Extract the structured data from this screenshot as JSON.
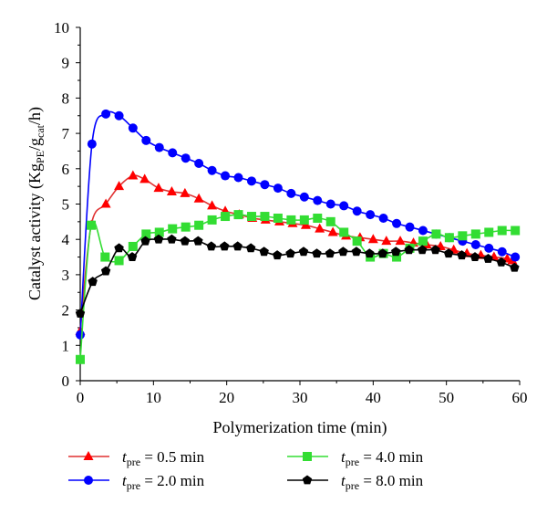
{
  "chart_data": {
    "type": "line",
    "xlabel": "Polymerization time (min)",
    "ylabel": "Catalyst activity (Kg",
    "ylabel_sub1": "PE",
    "ylabel_mid": "/g",
    "ylabel_sub2": "cat",
    "ylabel_end": "/h)",
    "xlim": [
      0,
      60
    ],
    "ylim": [
      0,
      10
    ],
    "x_ticks": [
      "0",
      "10",
      "20",
      "30",
      "40",
      "50",
      "60"
    ],
    "y_ticks": [
      "0",
      "1",
      "2",
      "3",
      "4",
      "5",
      "6",
      "7",
      "8",
      "9",
      "10"
    ],
    "grid": false,
    "legend_position": "bottom",
    "series": [
      {
        "name": "t_pre = 0.5 min",
        "legend_var": "t",
        "legend_sub": "pre",
        "legend_value": " = 0.5 min",
        "color": "#ff0000",
        "line_color": "#e03030",
        "marker": "triangle",
        "x": [
          0,
          1.5,
          3.5,
          5.3,
          7.2,
          8.8,
          10.7,
          12.5,
          14.3,
          16.2,
          18,
          19.8,
          21.7,
          23.5,
          25.3,
          27.2,
          29,
          30.8,
          32.7,
          34.5,
          36.3,
          38.2,
          40,
          41.8,
          43.7,
          45.5,
          47.3,
          49.2,
          51,
          52.8,
          54.7,
          56.5,
          58.3,
          59
        ],
        "values": [
          1.4,
          4.4,
          5.0,
          5.5,
          5.8,
          5.7,
          5.45,
          5.35,
          5.3,
          5.15,
          4.95,
          4.8,
          4.7,
          4.6,
          4.55,
          4.5,
          4.45,
          4.4,
          4.3,
          4.2,
          4.1,
          4.05,
          4.0,
          3.95,
          3.95,
          3.9,
          3.85,
          3.8,
          3.7,
          3.6,
          3.55,
          3.5,
          3.45,
          3.4
        ]
      },
      {
        "name": "t_pre = 2.0 min",
        "legend_var": "t",
        "legend_sub": "pre",
        "legend_value": " = 2.0 min",
        "color": "#0000ff",
        "line_color": "#0000ff",
        "marker": "circle",
        "x": [
          0,
          1.6,
          3.5,
          5.3,
          7.2,
          9,
          10.8,
          12.6,
          14.4,
          16.2,
          18,
          19.8,
          21.6,
          23.4,
          25.2,
          27,
          28.8,
          30.6,
          32.4,
          34.2,
          36,
          37.8,
          39.6,
          41.4,
          43.2,
          45,
          46.8,
          48.6,
          50.4,
          52.2,
          54,
          55.8,
          57.6,
          59.4
        ],
        "values": [
          1.3,
          6.7,
          7.55,
          7.5,
          7.15,
          6.8,
          6.6,
          6.45,
          6.3,
          6.15,
          5.95,
          5.8,
          5.75,
          5.65,
          5.55,
          5.45,
          5.3,
          5.2,
          5.1,
          5.0,
          4.95,
          4.8,
          4.7,
          4.6,
          4.45,
          4.35,
          4.25,
          4.15,
          4.05,
          3.95,
          3.85,
          3.75,
          3.65,
          3.5
        ]
      },
      {
        "name": "t_pre = 4.0 min",
        "legend_var": "t",
        "legend_sub": "pre",
        "legend_value": " = 4.0 min",
        "color": "#33dd33",
        "line_color": "#33dd33",
        "marker": "square",
        "x": [
          0,
          1.5,
          3.4,
          5.3,
          7.2,
          9,
          10.8,
          12.6,
          14.4,
          16.2,
          18,
          19.8,
          21.6,
          23.4,
          25.2,
          27,
          28.8,
          30.6,
          32.4,
          34.2,
          36,
          37.8,
          39.6,
          41.4,
          43.2,
          45,
          46.8,
          48.6,
          50.4,
          52.2,
          54,
          55.8,
          57.6,
          59.4
        ],
        "values": [
          0.6,
          4.4,
          3.5,
          3.4,
          3.8,
          4.15,
          4.2,
          4.3,
          4.35,
          4.4,
          4.55,
          4.65,
          4.7,
          4.65,
          4.65,
          4.6,
          4.55,
          4.55,
          4.6,
          4.5,
          4.2,
          3.95,
          3.5,
          3.6,
          3.5,
          3.75,
          3.95,
          4.15,
          4.05,
          4.1,
          4.15,
          4.2,
          4.25,
          4.25
        ]
      },
      {
        "name": "t_pre = 8.0 min",
        "legend_var": "t",
        "legend_sub": "pre",
        "legend_value": " = 8.0 min",
        "color": "#000000",
        "line_color": "#000000",
        "marker": "pentagon",
        "x": [
          0,
          1.7,
          3.5,
          5.3,
          7.1,
          8.9,
          10.7,
          12.5,
          14.3,
          16.1,
          17.9,
          19.7,
          21.5,
          23.3,
          25.1,
          26.9,
          28.7,
          30.5,
          32.3,
          34.1,
          35.9,
          37.7,
          39.5,
          41.3,
          43.1,
          44.9,
          46.7,
          48.5,
          50.3,
          52.1,
          53.9,
          55.7,
          57.5,
          59.3
        ],
        "values": [
          1.9,
          2.8,
          3.1,
          3.75,
          3.5,
          3.95,
          4.0,
          4.0,
          3.95,
          3.95,
          3.8,
          3.8,
          3.8,
          3.75,
          3.65,
          3.55,
          3.6,
          3.65,
          3.6,
          3.6,
          3.65,
          3.65,
          3.6,
          3.6,
          3.65,
          3.7,
          3.7,
          3.7,
          3.6,
          3.55,
          3.5,
          3.45,
          3.35,
          3.2
        ]
      }
    ]
  }
}
